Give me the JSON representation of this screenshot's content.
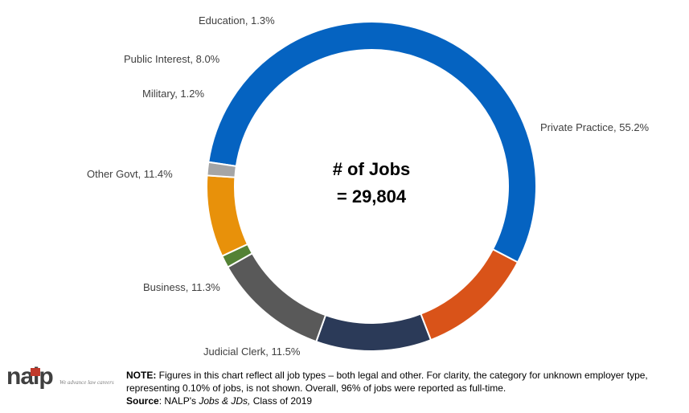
{
  "chart_data": {
    "type": "pie",
    "variant": "donut",
    "center_text": [
      "# of Jobs",
      "= 29,804"
    ],
    "slices": [
      {
        "label": "Private Practice, 55.2%",
        "value": 55.2,
        "color": "#0563C1"
      },
      {
        "label": "Judicial Clerk, 11.5%",
        "value": 11.5,
        "color": "#D95319"
      },
      {
        "label": "Business, 11.3%",
        "value": 11.3,
        "color": "#2B3A58"
      },
      {
        "label": "Other Govt, 11.4%",
        "value": 11.4,
        "color": "#595959"
      },
      {
        "label": "Military, 1.2%",
        "value": 1.2,
        "color": "#548235"
      },
      {
        "label": "Public Interest, 8.0%",
        "value": 8.0,
        "color": "#E8910A"
      },
      {
        "label": "Education, 1.3%",
        "value": 1.3,
        "color": "#A5A5A5"
      }
    ]
  },
  "footer": {
    "note_label": "NOTE:",
    "note_text": " Figures in this chart reflect all job types – both legal and other.  For clarity, the category for unknown employer type, representing 0.10% of jobs, is not shown.  Overall, 96% of jobs were reported as full-time.",
    "source_label": "Source",
    "source_prefix": ": NALP's ",
    "source_italic": "Jobs & JDs,",
    "source_suffix": " Class of 2019"
  },
  "logo": {
    "word": "nalp",
    "tagline": "We advance law careers"
  }
}
